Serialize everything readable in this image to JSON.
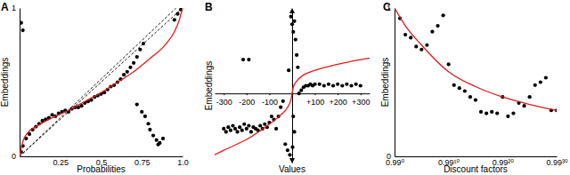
{
  "chart_data": [
    {
      "type": "scatter",
      "title": "A",
      "xlabel": "Probabilities",
      "ylabel": "Embeddings",
      "xlim": [
        0,
        1
      ],
      "ylim": [
        0,
        1
      ],
      "xticks": [
        0.25,
        0.5,
        0.75,
        {
          "value": 1,
          "label": "1.0"
        }
      ],
      "yticks": [
        0,
        1
      ],
      "series": [
        {
          "type": "line",
          "line_style": "dashed",
          "color": "#000000",
          "x": [
            0,
            1
          ],
          "values": [
            0,
            1
          ]
        },
        {
          "type": "line",
          "line_style": "dashed",
          "color": "#000000",
          "x": [
            0,
            0.96
          ],
          "values": [
            0,
            1
          ]
        },
        {
          "type": "scatter",
          "marker": "circle",
          "color": "#000000",
          "x": [
            0.01,
            0.02,
            0.01,
            0.02,
            0.04,
            0.06,
            0.08,
            0.1,
            0.12,
            0.14,
            0.16,
            0.18,
            0.2,
            0.22,
            0.24,
            0.26,
            0.28,
            0.3,
            0.32,
            0.34,
            0.36,
            0.38,
            0.4,
            0.42,
            0.44,
            0.46,
            0.48,
            0.5,
            0.52,
            0.54,
            0.56,
            0.58,
            0.6,
            0.62,
            0.64,
            0.66,
            0.68,
            0.7,
            0.72,
            0.74,
            0.76,
            0.72,
            0.75,
            0.77,
            0.79,
            0.8,
            0.82,
            0.84,
            0.86,
            0.88,
            0.85,
            0.95,
            0.97,
            0.99,
            1.0
          ],
          "values": [
            0.9,
            0.85,
            0.03,
            0.07,
            0.12,
            0.15,
            0.18,
            0.2,
            0.22,
            0.24,
            0.25,
            0.26,
            0.28,
            0.27,
            0.29,
            0.3,
            0.31,
            0.3,
            0.32,
            0.33,
            0.33,
            0.34,
            0.36,
            0.37,
            0.38,
            0.4,
            0.41,
            0.42,
            0.43,
            0.45,
            0.47,
            0.48,
            0.5,
            0.52,
            0.55,
            0.57,
            0.6,
            0.63,
            0.67,
            0.72,
            0.76,
            0.35,
            0.3,
            0.27,
            0.22,
            0.18,
            0.14,
            0.11,
            0.09,
            0.12,
            0.08,
            0.92,
            0.96,
            0.99,
            1.0
          ]
        },
        {
          "type": "line",
          "line_style": "solid",
          "color": "#e41a1c",
          "x": [
            0,
            0.02,
            0.05,
            0.1,
            0.2,
            0.3,
            0.4,
            0.5,
            0.6,
            0.7,
            0.8,
            0.9,
            0.95,
            0.98,
            1
          ],
          "values": [
            0,
            0.1,
            0.16,
            0.2,
            0.26,
            0.31,
            0.37,
            0.43,
            0.5,
            0.57,
            0.66,
            0.76,
            0.84,
            0.92,
            1
          ]
        }
      ]
    },
    {
      "type": "scatter",
      "title": "B",
      "xlabel": "Values",
      "ylabel": "Embeddings",
      "xlim": [
        -340,
        340
      ],
      "ylim": [
        0,
        1
      ],
      "tick_labels": "x",
      "xticks": [
        -300,
        -200,
        -100,
        {
          "value": 100,
          "label": "+100"
        },
        {
          "value": 200,
          "label": "+200"
        },
        {
          "value": 300,
          "label": "+300"
        }
      ],
      "series": [
        {
          "type": "scatter",
          "marker": "circle",
          "color": "#000000",
          "x": [
            -300,
            -290,
            -280,
            -270,
            -260,
            -250,
            -240,
            -230,
            -220,
            -210,
            -200,
            -190,
            -180,
            -170,
            -160,
            -150,
            -140,
            -130,
            -120,
            -110,
            -100,
            -90,
            -80,
            -70,
            -60,
            -50,
            -40,
            -30,
            -20,
            -10,
            -215,
            -190,
            -5,
            0,
            5,
            10,
            15,
            20,
            25,
            -15,
            5,
            10,
            2,
            30,
            40,
            50,
            60,
            70,
            80,
            90,
            100,
            120,
            140,
            160,
            180,
            200,
            220,
            240,
            260,
            280,
            300
          ],
          "values": [
            0.22,
            0.2,
            0.23,
            0.21,
            0.24,
            0.22,
            0.2,
            0.23,
            0.21,
            0.25,
            0.22,
            0.24,
            0.2,
            0.23,
            0.22,
            0.21,
            0.24,
            0.22,
            0.25,
            0.23,
            0.26,
            0.3,
            0.28,
            0.22,
            0.3,
            0.36,
            0.4,
            0.12,
            0.08,
            0.05,
            0.67,
            0.67,
            0.95,
            0.9,
            0.85,
            0.92,
            0.8,
            0.7,
            0.62,
            0.6,
            0.3,
            0.2,
            0.1,
            0.45,
            0.47,
            0.49,
            0.5,
            0.5,
            0.51,
            0.5,
            0.51,
            0.51,
            0.5,
            0.51,
            0.5,
            0.51,
            0.5,
            0.51,
            0.5,
            0.51,
            0.5
          ]
        },
        {
          "type": "line",
          "line_style": "solid",
          "color": "#e41a1c",
          "x": [
            -340,
            -300,
            -200,
            -100,
            -50,
            -20,
            -5,
            0,
            5,
            20,
            50,
            100,
            200,
            300,
            340
          ],
          "values": [
            0.05,
            0.08,
            0.15,
            0.25,
            0.31,
            0.36,
            0.41,
            0.45,
            0.49,
            0.53,
            0.57,
            0.6,
            0.64,
            0.67,
            0.68
          ]
        }
      ]
    },
    {
      "type": "scatter",
      "title": "C",
      "xlabel": "Discount factors",
      "ylabel": "Embeddings",
      "log": "x",
      "xlim": [
        1,
        0.7397
      ],
      "ylim": [
        0,
        1
      ],
      "xticks": [
        {
          "value": 1,
          "label": "0.99⁰"
        },
        {
          "value": 0.9044,
          "label": "0.99¹⁰"
        },
        {
          "value": 0.8179,
          "label": "0.99²⁰"
        },
        {
          "value": 0.7397,
          "label": "0.99³⁰"
        }
      ],
      "yticks": [
        0,
        1
      ],
      "series": [
        {
          "type": "scatter",
          "marker": "circle",
          "color": "#000000",
          "x": [
            0.99,
            0.9801,
            0.9703,
            0.9606,
            0.951,
            0.9415,
            0.9321,
            0.9227,
            0.9135,
            0.9044,
            0.8953,
            0.8864,
            0.8775,
            0.8687,
            0.8601,
            0.8515,
            0.8429,
            0.8345,
            0.8262,
            0.8179,
            0.8097,
            0.8016,
            0.7936,
            0.7857,
            0.7778,
            0.77,
            0.7623,
            0.7547,
            0.7472,
            0.7397
          ],
          "values": [
            0.93,
            0.82,
            0.8,
            0.74,
            0.72,
            0.75,
            0.84,
            0.88,
            0.95,
            0.62,
            0.48,
            0.46,
            0.44,
            0.4,
            0.38,
            0.3,
            0.29,
            0.3,
            0.29,
            0.4,
            0.27,
            0.29,
            0.36,
            0.34,
            0.4,
            0.48,
            0.5,
            0.53,
            0.31,
            0.31
          ]
        },
        {
          "type": "line",
          "line_style": "solid",
          "color": "#e41a1c",
          "x": [
            1,
            0.9801,
            0.951,
            0.9044,
            0.8601,
            0.8179,
            0.7778,
            0.7397
          ],
          "values": [
            1.0,
            0.88,
            0.75,
            0.57,
            0.47,
            0.4,
            0.35,
            0.31
          ]
        }
      ]
    }
  ]
}
